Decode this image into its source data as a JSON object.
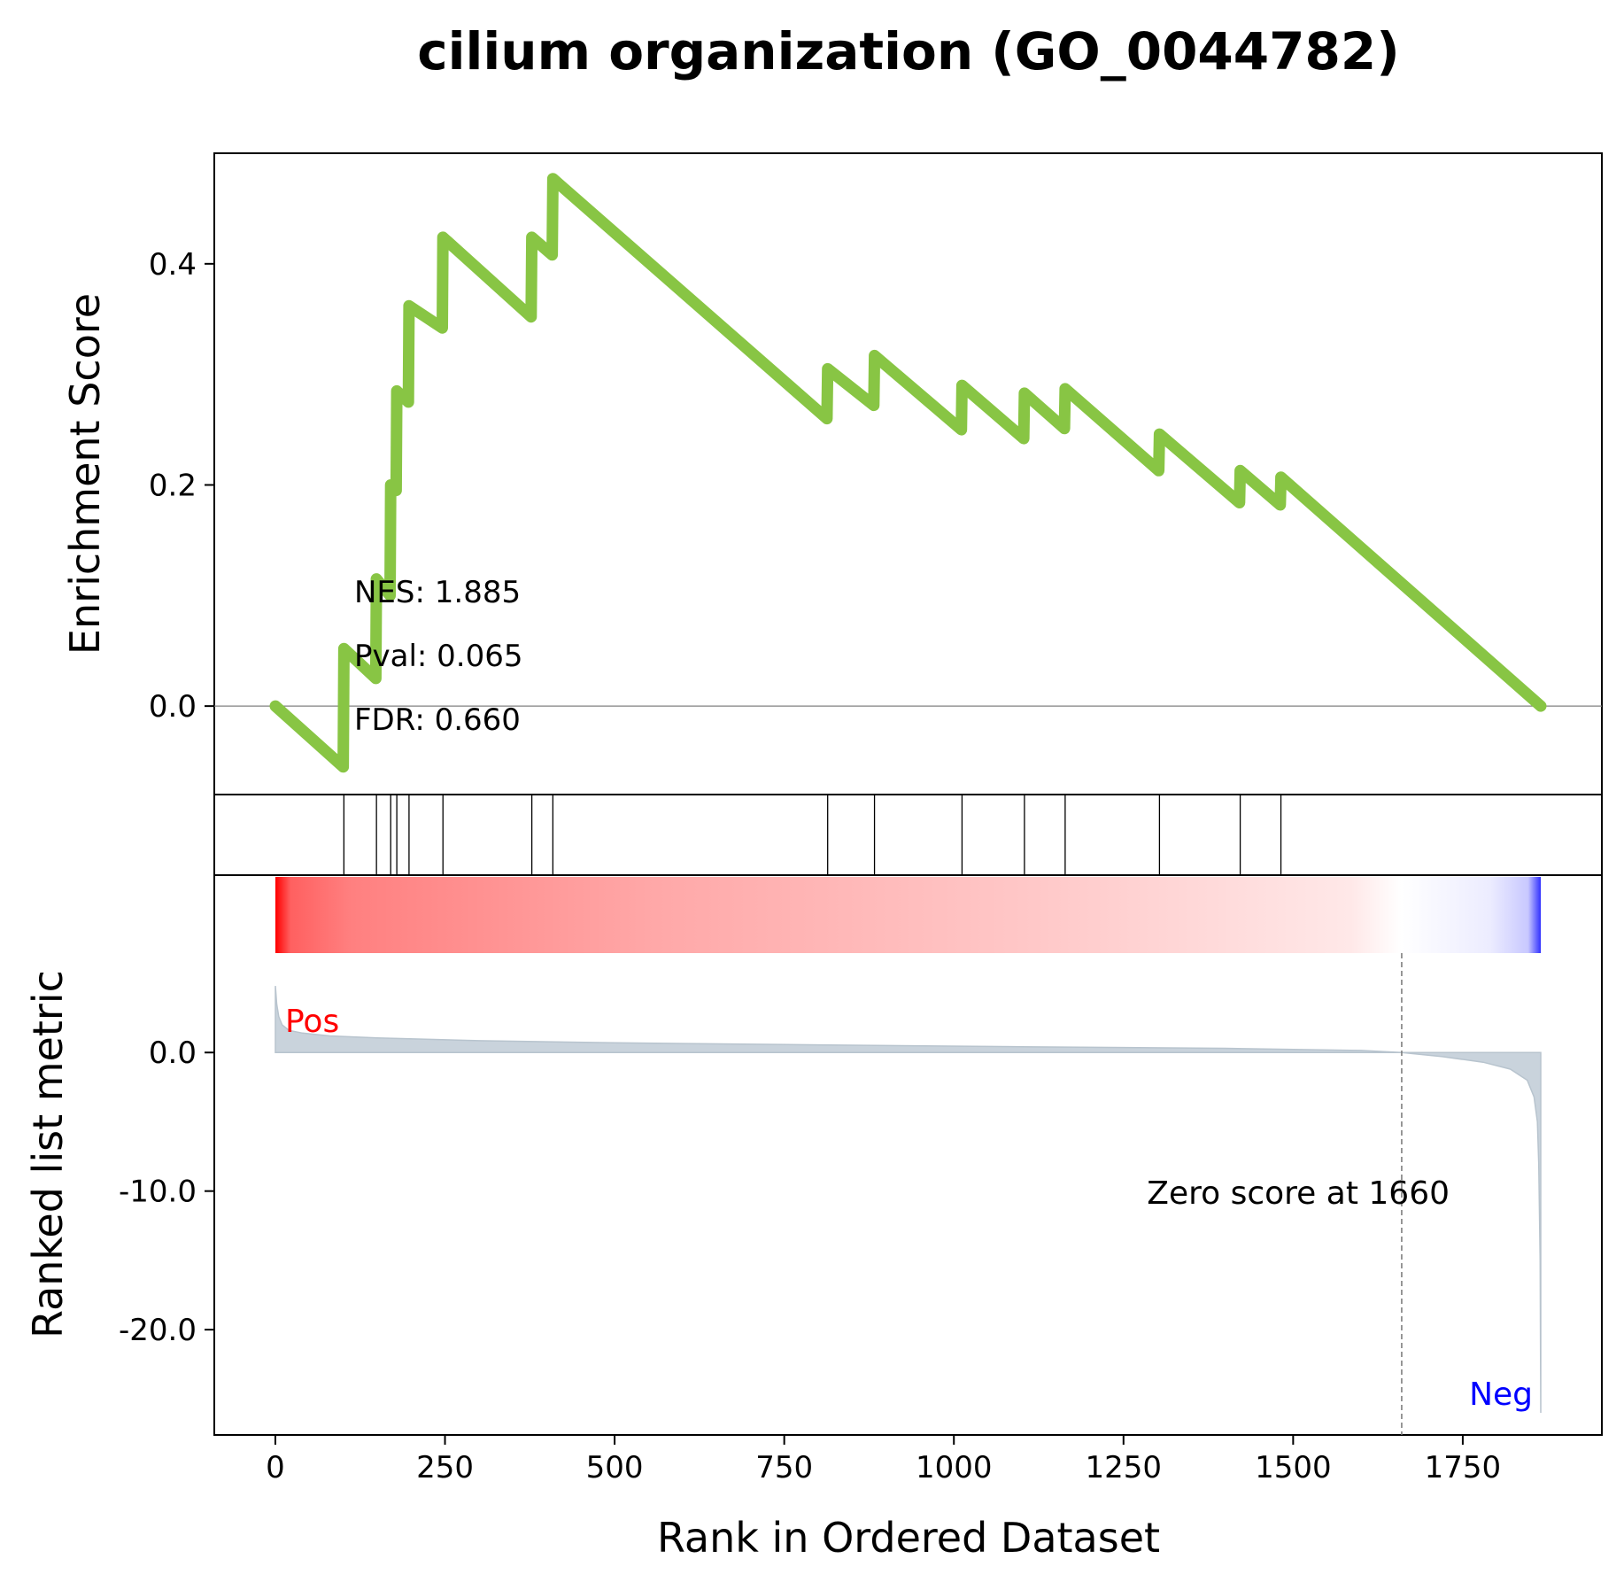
{
  "title": "cilium organization (GO_0044782)",
  "ylabel_es": "Enrichment Score",
  "ylabel_rank": "Ranked list metric",
  "xlabel": "Rank in Ordered Dataset",
  "stats": {
    "nes": "NES: 1.885",
    "pval": "Pval: 0.065",
    "fdr": "FDR: 0.660"
  },
  "labels": {
    "pos": "Pos",
    "neg": "Neg",
    "zero_score": "Zero score at 1660"
  },
  "colors": {
    "es_line": "#88c544",
    "pos": "#ff0000",
    "neg": "#0000ff",
    "metric_fill": "#c9d3dc"
  },
  "chart_data": {
    "type": "line",
    "x_ticks": [
      0,
      250,
      500,
      750,
      1000,
      1250,
      1500,
      1750
    ],
    "x_tick_labels": [
      "0",
      "250",
      "500",
      "750",
      "1000",
      "1250",
      "1500",
      "1750"
    ],
    "xlim": [
      -90,
      1955
    ],
    "n_genes": 1865,
    "zero_score_rank": 1660,
    "es_panel": {
      "ylim": [
        -0.08,
        0.5
      ],
      "y_ticks": [
        0.0,
        0.2,
        0.4
      ],
      "y_tick_labels": [
        "0.0",
        "0.2",
        "0.4"
      ],
      "points": [
        [
          0,
          0.0
        ],
        [
          100,
          -0.055
        ],
        [
          101,
          0.052
        ],
        [
          148,
          0.025
        ],
        [
          149,
          0.115
        ],
        [
          169,
          0.1
        ],
        [
          170,
          0.2
        ],
        [
          178,
          0.195
        ],
        [
          179,
          0.285
        ],
        [
          196,
          0.275
        ],
        [
          197,
          0.362
        ],
        [
          246,
          0.342
        ],
        [
          247,
          0.424
        ],
        [
          377,
          0.352
        ],
        [
          378,
          0.424
        ],
        [
          408,
          0.408
        ],
        [
          409,
          0.477
        ],
        [
          813,
          0.26
        ],
        [
          814,
          0.305
        ],
        [
          882,
          0.272
        ],
        [
          883,
          0.317
        ],
        [
          1011,
          0.25
        ],
        [
          1012,
          0.29
        ],
        [
          1103,
          0.242
        ],
        [
          1104,
          0.283
        ],
        [
          1163,
          0.251
        ],
        [
          1164,
          0.287
        ],
        [
          1302,
          0.213
        ],
        [
          1303,
          0.246
        ],
        [
          1421,
          0.184
        ],
        [
          1422,
          0.213
        ],
        [
          1481,
          0.182
        ],
        [
          1482,
          0.207
        ],
        [
          1865,
          0.0
        ]
      ]
    },
    "hit_ranks": [
      101,
      149,
      170,
      179,
      197,
      247,
      378,
      409,
      814,
      883,
      1012,
      1104,
      1164,
      1303,
      1422,
      1482
    ],
    "metric_panel": {
      "ylim": [
        -27.6,
        12.8
      ],
      "y_ticks": [
        0.0,
        -10.0,
        -20.0
      ],
      "y_tick_labels": [
        "0.0",
        "-10.0",
        "-20.0"
      ],
      "points": [
        [
          0,
          4.8
        ],
        [
          2,
          3.5
        ],
        [
          5,
          2.6
        ],
        [
          10,
          2.0
        ],
        [
          20,
          1.6
        ],
        [
          40,
          1.4
        ],
        [
          80,
          1.2
        ],
        [
          150,
          1.05
        ],
        [
          300,
          0.85
        ],
        [
          500,
          0.7
        ],
        [
          800,
          0.55
        ],
        [
          1100,
          0.42
        ],
        [
          1400,
          0.3
        ],
        [
          1600,
          0.15
        ],
        [
          1660,
          0.0
        ],
        [
          1720,
          -0.3
        ],
        [
          1780,
          -0.7
        ],
        [
          1820,
          -1.2
        ],
        [
          1845,
          -2.0
        ],
        [
          1855,
          -3.2
        ],
        [
          1860,
          -5.0
        ],
        [
          1862,
          -8.0
        ],
        [
          1864,
          -15.0
        ],
        [
          1865,
          -26.0
        ]
      ]
    }
  }
}
